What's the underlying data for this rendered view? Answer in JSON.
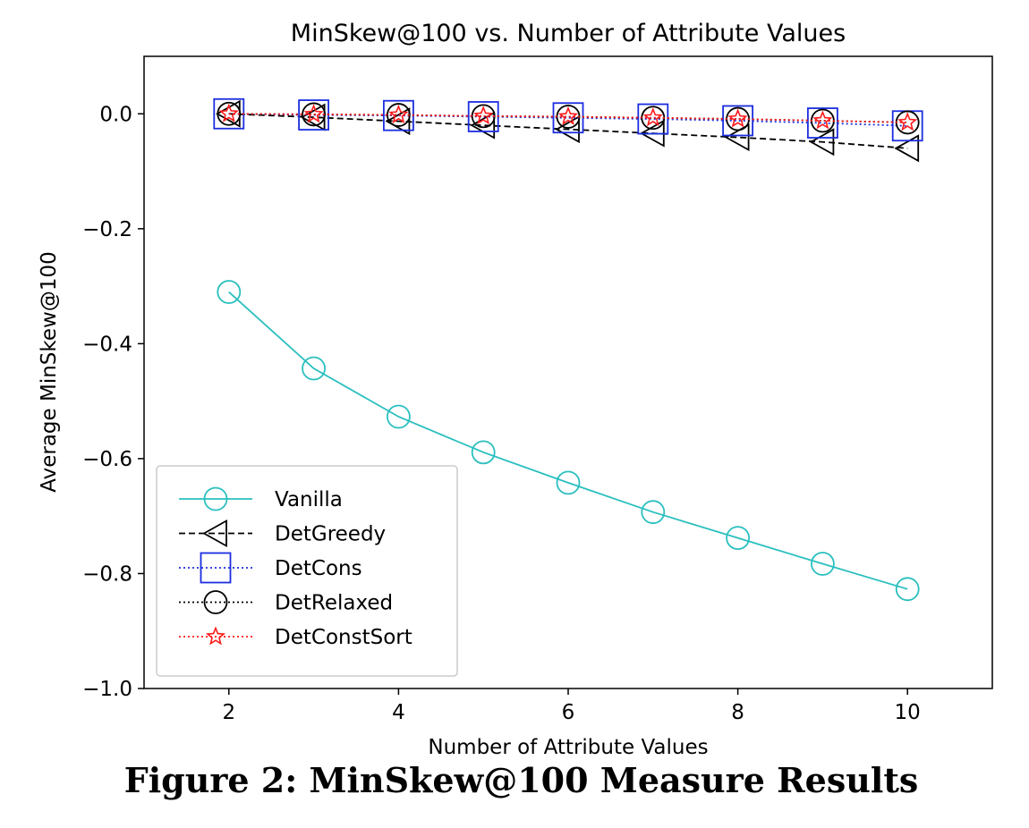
{
  "caption": "Figure 2: MinSkew@100 Measure Results",
  "chart_data": {
    "type": "line",
    "title": "MinSkew@100 vs. Number of Attribute Values",
    "xlabel": "Number of Attribute Values",
    "ylabel": "Average MinSkew@100",
    "xlim": [
      1,
      11
    ],
    "ylim": [
      -1.0,
      0.1
    ],
    "xticks": [
      2,
      4,
      6,
      8,
      10
    ],
    "yticks": [
      0.0,
      -0.2,
      -0.4,
      -0.6,
      -0.8,
      -1.0
    ],
    "ytick_labels": [
      "0.0",
      "−0.2",
      "−0.4",
      "−0.6",
      "−0.8",
      "−1.0"
    ],
    "grid": false,
    "legend_position": "lower-left",
    "x": [
      2,
      3,
      4,
      5,
      6,
      7,
      8,
      9,
      10
    ],
    "series": [
      {
        "name": "Vanilla",
        "values": [
          -0.31,
          -0.443,
          -0.527,
          -0.589,
          -0.642,
          -0.693,
          -0.738,
          -0.783,
          -0.827
        ],
        "color": "#2bbfbf",
        "line": "solid",
        "marker": "circle"
      },
      {
        "name": "DetGreedy",
        "values": [
          0.0,
          -0.006,
          -0.013,
          -0.02,
          -0.027,
          -0.034,
          -0.041,
          -0.049,
          -0.06
        ],
        "color": "#000000",
        "line": "dashed",
        "marker": "triangle-left"
      },
      {
        "name": "DetCons",
        "values": [
          0.0,
          -0.002,
          -0.003,
          -0.005,
          -0.007,
          -0.009,
          -0.012,
          -0.016,
          -0.021
        ],
        "color": "#1b2de0",
        "line": "dotted",
        "marker": "square"
      },
      {
        "name": "DetRelaxed",
        "values": [
          0.0,
          -0.001,
          -0.002,
          -0.004,
          -0.005,
          -0.007,
          -0.009,
          -0.012,
          -0.015
        ],
        "color": "#000000",
        "line": "dotted",
        "marker": "circle"
      },
      {
        "name": "DetConstSort",
        "values": [
          0.0,
          -0.001,
          -0.002,
          -0.004,
          -0.005,
          -0.007,
          -0.009,
          -0.012,
          -0.015
        ],
        "color": "#ff1a1a",
        "line": "dotted",
        "marker": "star"
      }
    ]
  }
}
